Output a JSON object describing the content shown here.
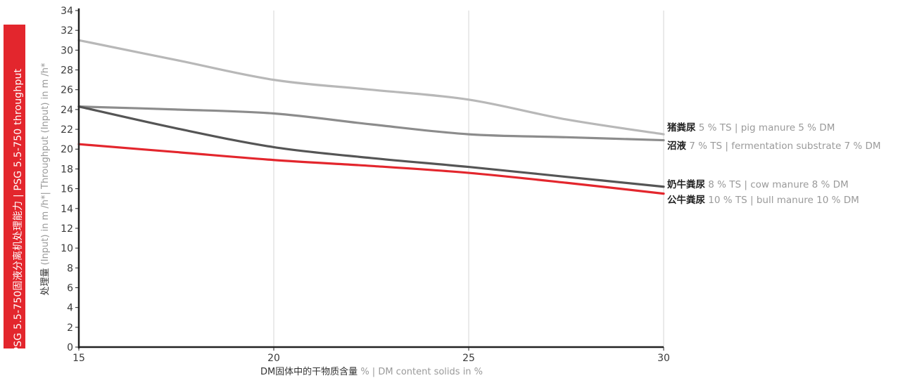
{
  "side_label": "PSG 5.5-750固液分离机处理能力 | PSG 5.5-750 throughput",
  "chart_data": {
    "type": "line",
    "ylabel_cn": "处理量",
    "ylabel_en": " (Input) in m /h*| Throughput (Input) in m /h*",
    "xlabel_cn": "DM固体中的干物质含量",
    "xlabel_en": " % | DM content solids in %",
    "xlim": [
      15,
      30
    ],
    "ylim": [
      0,
      34
    ],
    "x_ticks": [
      15,
      20,
      25,
      30
    ],
    "y_ticks": [
      0,
      2,
      4,
      6,
      8,
      10,
      12,
      14,
      16,
      18,
      20,
      22,
      24,
      26,
      28,
      30,
      32,
      34
    ],
    "grid": "vertical",
    "series": [
      {
        "label_cn": "猪粪尿",
        "label_en": " 5 % TS | pig manure 5 % DM",
        "color": "#b8b8b8",
        "x": [
          15,
          17.5,
          20,
          22.5,
          25,
          27.5,
          30
        ],
        "values": [
          31,
          29,
          27,
          26,
          25,
          23,
          21.5
        ]
      },
      {
        "label_cn": "沼液",
        "label_en": " 7 % TS | fermentation substrate 7 % DM",
        "color": "#8c8c8c",
        "x": [
          15,
          17.5,
          20,
          22.5,
          25,
          27.5,
          30
        ],
        "values": [
          24.3,
          24,
          23.6,
          22.5,
          21.5,
          21.2,
          20.9
        ]
      },
      {
        "label_cn": "奶牛粪尿",
        "label_en": " 8 % TS | cow manure 8 % DM",
        "color": "#555555",
        "x": [
          15,
          17.5,
          20,
          22.5,
          25,
          27.5,
          30
        ],
        "values": [
          24.3,
          22.1,
          20.2,
          19.1,
          18.2,
          17.2,
          16.2
        ]
      },
      {
        "label_cn": "公牛粪尿",
        "label_en": " 10 % TS | bull manure 10 % DM",
        "color": "#e3262d",
        "x": [
          15,
          17.5,
          20,
          22.5,
          25,
          27.5,
          30
        ],
        "values": [
          20.5,
          19.7,
          18.9,
          18.3,
          17.6,
          16.6,
          15.5
        ]
      }
    ]
  }
}
